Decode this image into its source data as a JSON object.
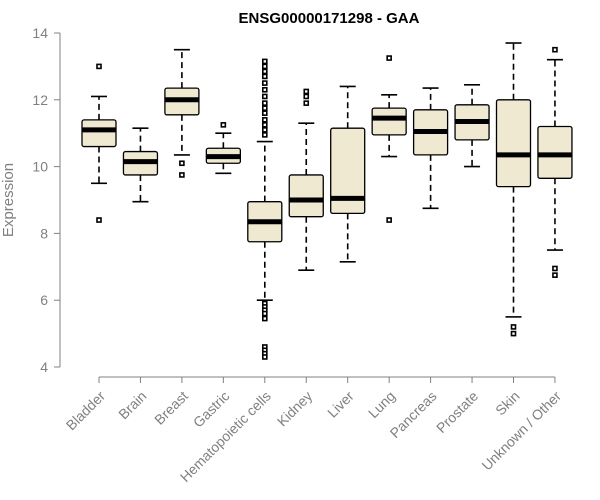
{
  "chart_data": {
    "type": "boxplot",
    "title": "ENSG00000171298 - GAA",
    "xlabel": "",
    "ylabel": "Expression",
    "ylim": [
      4,
      14
    ],
    "yticks": [
      4,
      6,
      8,
      10,
      12,
      14
    ],
    "categories": [
      "Bladder",
      "Brain",
      "Breast",
      "Gastric",
      "Hematopoietic cells",
      "Kidney",
      "Liver",
      "Lung",
      "Pancreas",
      "Prostate",
      "Skin",
      "Unknown / Other"
    ],
    "boxes": [
      {
        "name": "Bladder",
        "whisker_low": 9.5,
        "q1": 10.6,
        "median": 11.1,
        "q3": 11.4,
        "whisker_high": 12.1,
        "outliers": [
          13.0,
          8.4
        ]
      },
      {
        "name": "Brain",
        "whisker_low": 8.95,
        "q1": 9.75,
        "median": 10.15,
        "q3": 10.45,
        "whisker_high": 11.15,
        "outliers": []
      },
      {
        "name": "Breast",
        "whisker_low": 10.35,
        "q1": 11.55,
        "median": 12.0,
        "q3": 12.35,
        "whisker_high": 13.5,
        "outliers": [
          10.1,
          9.75
        ]
      },
      {
        "name": "Gastric",
        "whisker_low": 9.8,
        "q1": 10.1,
        "median": 10.3,
        "q3": 10.55,
        "whisker_high": 11.0,
        "outliers": [
          11.25
        ]
      },
      {
        "name": "Hematopoietic cells",
        "whisker_low": 6.0,
        "q1": 7.75,
        "median": 8.35,
        "q3": 8.95,
        "whisker_high": 10.75,
        "outliers": [
          13.15,
          13.0,
          12.85,
          12.7,
          12.5,
          12.3,
          12.1,
          11.9,
          11.75,
          11.6,
          11.4,
          11.25,
          11.1,
          10.95,
          5.9,
          5.8,
          5.7,
          5.6,
          5.45,
          4.6,
          4.5,
          4.4,
          4.3
        ]
      },
      {
        "name": "Kidney",
        "whisker_low": 6.9,
        "q1": 8.5,
        "median": 9.0,
        "q3": 9.75,
        "whisker_high": 11.3,
        "outliers": [
          12.25,
          12.1,
          11.9
        ]
      },
      {
        "name": "Liver",
        "whisker_low": 7.15,
        "q1": 8.6,
        "median": 9.05,
        "q3": 11.15,
        "whisker_high": 12.4,
        "outliers": []
      },
      {
        "name": "Lung",
        "whisker_low": 10.3,
        "q1": 10.95,
        "median": 11.45,
        "q3": 11.75,
        "whisker_high": 12.15,
        "outliers": [
          13.25,
          8.4
        ]
      },
      {
        "name": "Pancreas",
        "whisker_low": 8.75,
        "q1": 10.35,
        "median": 11.05,
        "q3": 11.7,
        "whisker_high": 12.35,
        "outliers": []
      },
      {
        "name": "Prostate",
        "whisker_low": 10.0,
        "q1": 10.8,
        "median": 11.35,
        "q3": 11.85,
        "whisker_high": 12.45,
        "outliers": []
      },
      {
        "name": "Skin",
        "whisker_low": 5.5,
        "q1": 9.4,
        "median": 10.35,
        "q3": 12.0,
        "whisker_high": 13.7,
        "outliers": [
          5.2,
          5.0
        ]
      },
      {
        "name": "Unknown / Other",
        "whisker_low": 7.5,
        "q1": 9.65,
        "median": 10.35,
        "q3": 11.2,
        "whisker_high": 13.2,
        "outliers": [
          13.5,
          6.95,
          6.75
        ]
      }
    ],
    "colors": {
      "box_fill": "#efe9d2",
      "box_stroke": "#000000",
      "axis": "#808080"
    }
  }
}
